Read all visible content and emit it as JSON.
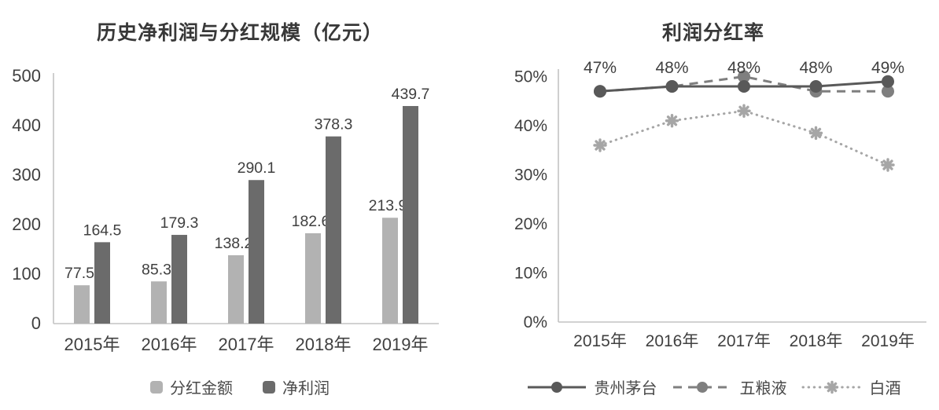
{
  "page": {
    "background": "#ffffff",
    "text_color": "#404040",
    "axis_color": "#c3c3c3"
  },
  "chart_data": [
    {
      "type": "bar",
      "title": "历史净利润与分红规模（亿元）",
      "categories": [
        "2015年",
        "2016年",
        "2017年",
        "2018年",
        "2019年"
      ],
      "series": [
        {
          "name": "分红金额",
          "color": "#b2b2b2",
          "values": [
            77.5,
            85.3,
            138.2,
            182.6,
            213.9
          ],
          "labels": [
            "77.5",
            "85.3",
            "138.2",
            "182.6",
            "213.9"
          ]
        },
        {
          "name": "净利润",
          "color": "#6b6b6b",
          "values": [
            164.5,
            179.3,
            290.1,
            378.3,
            439.7
          ],
          "labels": [
            "164.5",
            "179.3",
            "290.1",
            "378.3",
            "439.7"
          ]
        }
      ],
      "ylim": [
        0,
        500
      ],
      "yticks": [
        {
          "label": "0",
          "value": 0
        },
        {
          "label": "100",
          "value": 100
        },
        {
          "label": "200",
          "value": 200
        },
        {
          "label": "300",
          "value": 300
        },
        {
          "label": "400",
          "value": 400
        },
        {
          "label": "500",
          "value": 500
        }
      ],
      "grid": false,
      "legend_position": "bottom",
      "data_labels": true
    },
    {
      "type": "line",
      "title": "利润分红率",
      "categories": [
        "2015年",
        "2016年",
        "2017年",
        "2018年",
        "2019年"
      ],
      "series": [
        {
          "name": "贵州茅台",
          "line_style": "solid",
          "marker": "circle",
          "color": "#595959",
          "values": [
            47,
            48,
            48,
            48,
            49
          ],
          "labels": [
            "47%",
            "48%",
            "48%",
            "48%",
            "49%"
          ]
        },
        {
          "name": "五粮液",
          "line_style": "dashed",
          "marker": "circle",
          "color": "#7f7f7f",
          "values": [
            47,
            48,
            50,
            47,
            47
          ]
        },
        {
          "name": "白酒",
          "line_style": "dotted",
          "marker": "star",
          "color": "#a6a6a6",
          "values": [
            36,
            41,
            43,
            38.5,
            32
          ]
        }
      ],
      "ylim": [
        0,
        50
      ],
      "yticks": [
        {
          "label": "0%",
          "value": 0
        },
        {
          "label": "10%",
          "value": 10
        },
        {
          "label": "20%",
          "value": 20
        },
        {
          "label": "30%",
          "value": 30
        },
        {
          "label": "40%",
          "value": 40
        },
        {
          "label": "50%",
          "value": 50
        }
      ],
      "grid": false,
      "legend_position": "bottom",
      "data_labels": true
    }
  ]
}
